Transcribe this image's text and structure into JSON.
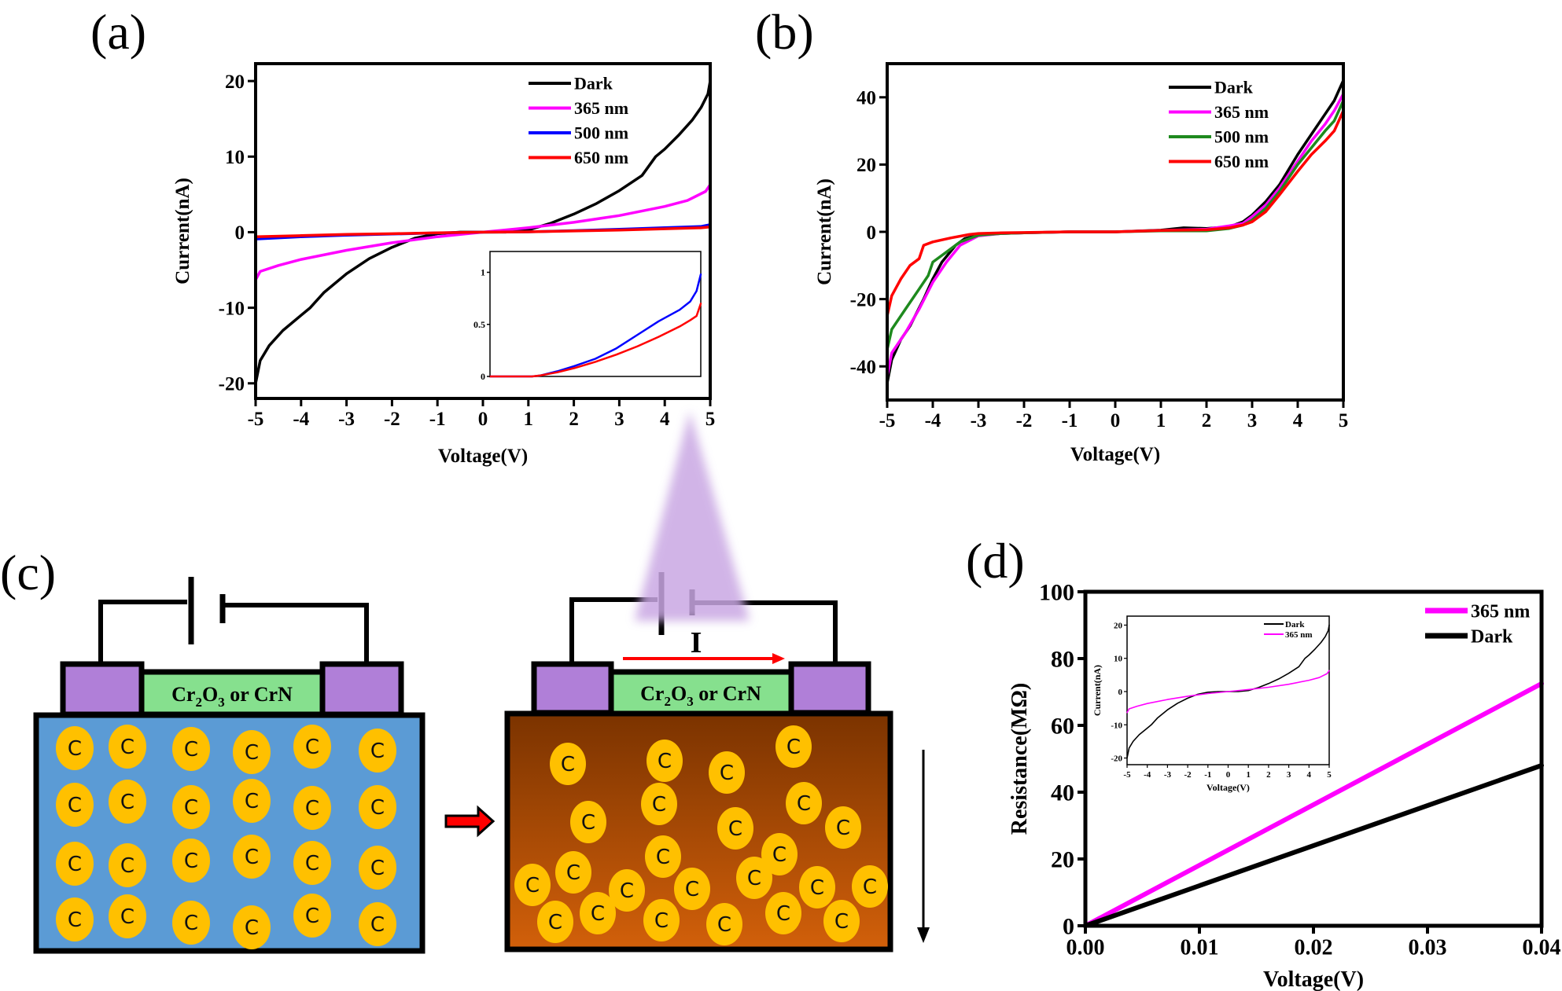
{
  "chart_data": [
    {
      "id": "a",
      "panel_label": "(a)",
      "type": "line",
      "title": "",
      "xlabel": "Voltage(V)",
      "ylabel": "Current(nA)",
      "xlim": [
        -5,
        5
      ],
      "ylim": [
        -22,
        22.3
      ],
      "xticks": [
        -5,
        -4,
        -3,
        -2,
        -1,
        0,
        1,
        2,
        3,
        4,
        5
      ],
      "yticks": [
        -20,
        -10,
        0,
        10,
        20
      ],
      "legend_position": "top-right",
      "series": [
        {
          "name": "Dark",
          "color": "#000000",
          "x": [
            -5,
            -4.9,
            -4.7,
            -4.4,
            -4.0,
            -3.8,
            -3.5,
            -3.0,
            -2.5,
            -2.0,
            -1.5,
            -1.0,
            -0.5,
            0,
            0.5,
            1.0,
            1.5,
            2.0,
            2.5,
            3.0,
            3.5,
            3.8,
            4.0,
            4.3,
            4.6,
            4.8,
            4.95,
            5
          ],
          "y": [
            -20,
            -17,
            -15,
            -13,
            -11,
            -10,
            -8,
            -5.5,
            -3.5,
            -2,
            -0.8,
            -0.2,
            0,
            0,
            0,
            0.3,
            1.2,
            2.4,
            3.8,
            5.5,
            7.5,
            10,
            11,
            12.8,
            14.8,
            16.5,
            18.3,
            20
          ]
        },
        {
          "name": "365 nm",
          "color": "#ff00ff",
          "x": [
            -5,
            -4.9,
            -4.5,
            -4,
            -3,
            -2,
            -1,
            0,
            1,
            2,
            3,
            4,
            4.5,
            4.9,
            5
          ],
          "y": [
            -6.3,
            -5.2,
            -4.4,
            -3.6,
            -2.4,
            -1.4,
            -0.6,
            0,
            0.6,
            1.3,
            2.2,
            3.4,
            4.2,
            5.4,
            6.3
          ]
        },
        {
          "name": "500 nm",
          "color": "#0000ff",
          "x": [
            -5,
            -4,
            -3,
            -2,
            -1,
            0,
            1,
            2,
            3,
            4,
            4.8,
            5
          ],
          "y": [
            -0.9,
            -0.6,
            -0.4,
            -0.25,
            -0.1,
            0,
            0.05,
            0.2,
            0.38,
            0.6,
            0.75,
            1.0
          ]
        },
        {
          "name": "650 nm",
          "color": "#ff0000",
          "x": [
            -5,
            -4,
            -3,
            -2,
            -1,
            0,
            1,
            2,
            3,
            4,
            4.8,
            5
          ],
          "y": [
            -0.6,
            -0.45,
            -0.3,
            -0.2,
            -0.08,
            0,
            0.05,
            0.16,
            0.28,
            0.45,
            0.58,
            0.7
          ]
        }
      ],
      "inset": {
        "type": "line",
        "xlim": [
          0,
          5
        ],
        "ylim": [
          0,
          1.2
        ],
        "yticks": [
          0,
          0.5,
          1
        ],
        "ytick_labels": [
          "0",
          "0.5",
          "1"
        ],
        "series": [
          {
            "name": "500 nm",
            "color": "#0000ff",
            "x": [
              0,
              0.5,
              1.0,
              1.2,
              1.6,
              2.0,
              2.5,
              3.0,
              3.5,
              4.0,
              4.5,
              4.75,
              4.9,
              5.0
            ],
            "y": [
              0,
              0,
              0,
              0.01,
              0.05,
              0.1,
              0.17,
              0.27,
              0.4,
              0.53,
              0.64,
              0.72,
              0.82,
              0.98
            ]
          },
          {
            "name": "650 nm",
            "color": "#ff0000",
            "x": [
              0,
              0.5,
              1.0,
              1.2,
              1.6,
              2.0,
              2.5,
              3.0,
              3.5,
              4.0,
              4.5,
              4.75,
              4.9,
              5.0
            ],
            "y": [
              0,
              0,
              0,
              0.01,
              0.04,
              0.08,
              0.14,
              0.21,
              0.29,
              0.38,
              0.48,
              0.54,
              0.58,
              0.7
            ]
          }
        ]
      }
    },
    {
      "id": "b",
      "panel_label": "(b)",
      "type": "line",
      "title": "",
      "xlabel": "Voltage(V)",
      "ylabel": "Current(nA)",
      "xlim": [
        -5,
        5
      ],
      "ylim": [
        -50,
        50
      ],
      "xticks": [
        -5,
        -4,
        -3,
        -2,
        -1,
        0,
        1,
        2,
        3,
        4,
        5
      ],
      "yticks": [
        -40,
        -20,
        0,
        20,
        40
      ],
      "legend_position": "top-right",
      "series": [
        {
          "name": "Dark",
          "color": "#000000",
          "x": [
            -5,
            -4.9,
            -4.7,
            -4.5,
            -4.2,
            -4.0,
            -3.8,
            -3.5,
            -3.3,
            -3.0,
            -2.5,
            -2,
            -1,
            0,
            1,
            1.5,
            2,
            2.5,
            2.8,
            3.0,
            3.3,
            3.6,
            4.0,
            4.3,
            4.6,
            4.8,
            5
          ],
          "y": [
            -45,
            -38,
            -32,
            -28,
            -20,
            -14,
            -9,
            -4,
            -2,
            -1,
            -0.5,
            -0.3,
            0,
            0,
            0.5,
            1.2,
            1,
            1.5,
            3,
            5,
            9,
            14,
            23,
            29,
            35,
            39,
            45
          ]
        },
        {
          "name": "365 nm",
          "color": "#ff00ff",
          "x": [
            -5,
            -4.9,
            -4.6,
            -4.3,
            -4.0,
            -3.7,
            -3.4,
            -3.0,
            -2.5,
            -2,
            -1,
            0,
            1,
            2,
            2.5,
            2.8,
            3.0,
            3.3,
            3.6,
            4.0,
            4.3,
            4.6,
            4.8,
            5
          ],
          "y": [
            -43,
            -36,
            -30,
            -23,
            -15,
            -9,
            -4,
            -1.2,
            -0.5,
            -0.3,
            0,
            0,
            0.4,
            0.8,
            1.8,
            2.5,
            4.5,
            8,
            13,
            21,
            27,
            32,
            36,
            41
          ]
        },
        {
          "name": "500 nm",
          "color": "#1e8a1e",
          "x": [
            -5,
            -4.9,
            -4.6,
            -4.3,
            -4.1,
            -4.0,
            -3.7,
            -3.4,
            -3.0,
            -2.5,
            -2,
            -1,
            0,
            1,
            2,
            2.5,
            2.8,
            3.0,
            3.3,
            3.6,
            4.0,
            4.3,
            4.6,
            4.8,
            5
          ],
          "y": [
            -35,
            -29,
            -23,
            -17,
            -13,
            -9,
            -6,
            -3,
            -1,
            -0.5,
            -0.3,
            0,
            0,
            0.3,
            0.3,
            1,
            2,
            3.5,
            7,
            12,
            20,
            25,
            30,
            33,
            39
          ]
        },
        {
          "name": "650 nm",
          "color": "#ff0000",
          "x": [
            -5,
            -4.9,
            -4.7,
            -4.5,
            -4.3,
            -4.2,
            -4.0,
            -3.6,
            -3.2,
            -3.0,
            -2.5,
            -2,
            -1,
            0,
            1,
            2,
            2.5,
            2.8,
            3.0,
            3.3,
            3.6,
            4.0,
            4.3,
            4.6,
            4.8,
            5
          ],
          "y": [
            -25,
            -19,
            -14,
            -10,
            -8,
            -4,
            -3,
            -1.8,
            -0.8,
            -0.5,
            -0.3,
            -0.2,
            0,
            0,
            0.4,
            0.6,
            1.2,
            2,
            3,
            6,
            11,
            18,
            23,
            27,
            30,
            36
          ]
        }
      ]
    },
    {
      "id": "d",
      "panel_label": "(d)",
      "type": "line",
      "title": "",
      "xlabel": "Voltage(V)",
      "ylabel": "Resistance(MΩ)",
      "xlim": [
        0,
        0.04
      ],
      "ylim": [
        0,
        100
      ],
      "xticks": [
        0,
        0.01,
        0.02,
        0.03,
        0.04
      ],
      "xtick_labels": [
        "0.00",
        "0.01",
        "0.02",
        "0.03",
        "0.04"
      ],
      "yticks": [
        0,
        20,
        40,
        60,
        80,
        100
      ],
      "legend_position": "top-right",
      "series": [
        {
          "name": "365 nm",
          "color": "#ff00ff",
          "x": [
            0,
            0.04
          ],
          "y": [
            0,
            72.5
          ]
        },
        {
          "name": "Dark",
          "color": "#000000",
          "x": [
            0,
            0.04
          ],
          "y": [
            0,
            48
          ]
        }
      ],
      "inset": {
        "type": "line",
        "xlabel": "Voltage(V)",
        "ylabel": "Current(nA)",
        "xlim": [
          -5,
          5
        ],
        "ylim": [
          -22,
          22.7
        ],
        "xticks": [
          -5,
          -4,
          -3,
          -2,
          -1,
          0,
          1,
          2,
          3,
          4,
          5
        ],
        "yticks": [
          -20,
          -10,
          0,
          10,
          20
        ],
        "legend_position": "top-right",
        "series": [
          {
            "name": "Dark",
            "color": "#000000",
            "x": [
              -5,
              -4.9,
              -4.7,
              -4.4,
              -4.0,
              -3.8,
              -3.5,
              -3.0,
              -2.5,
              -2.0,
              -1.5,
              -1.0,
              -0.5,
              0,
              0.5,
              1.0,
              1.5,
              2.0,
              2.5,
              3.0,
              3.5,
              3.8,
              4.0,
              4.3,
              4.6,
              4.8,
              4.95,
              5
            ],
            "y": [
              -20,
              -17,
              -15,
              -13,
              -11,
              -10,
              -8,
              -5.5,
              -3.5,
              -2,
              -0.8,
              -0.2,
              0,
              0,
              0,
              0.3,
              1.2,
              2.4,
              3.8,
              5.5,
              7.5,
              10,
              11,
              12.8,
              14.8,
              16.5,
              18.3,
              20
            ]
          },
          {
            "name": "365 nm",
            "color": "#ff00ff",
            "x": [
              -5,
              -4.9,
              -4.5,
              -4,
              -3,
              -2,
              -1,
              0,
              1,
              2,
              3,
              4,
              4.5,
              4.9,
              5
            ],
            "y": [
              -6.3,
              -5.2,
              -4.4,
              -3.6,
              -2.4,
              -1.4,
              -0.6,
              0,
              0.6,
              1.3,
              2.2,
              3.4,
              4.2,
              5.4,
              6.3
            ]
          }
        ]
      }
    }
  ],
  "diagram": {
    "panel_label": "(c)",
    "film_label_prefix": "Cr",
    "film_label_sub1": "2",
    "film_label_mid": "O",
    "film_label_sub2": "3",
    "film_label_suffix": " or CrN",
    "carbon_label": "C",
    "current_label": "I",
    "colors": {
      "substrate_before": "#5b9bd5",
      "substrate_after_top": "#7b3300",
      "substrate_after_bottom": "#d2600a",
      "electrode": "#b07fd8",
      "film": "#86e08e",
      "carbon": "#ffc000",
      "light_beam": "#c9a7e3",
      "current_arrow": "#ff0000",
      "transition_arrow": "#ff0000"
    }
  }
}
